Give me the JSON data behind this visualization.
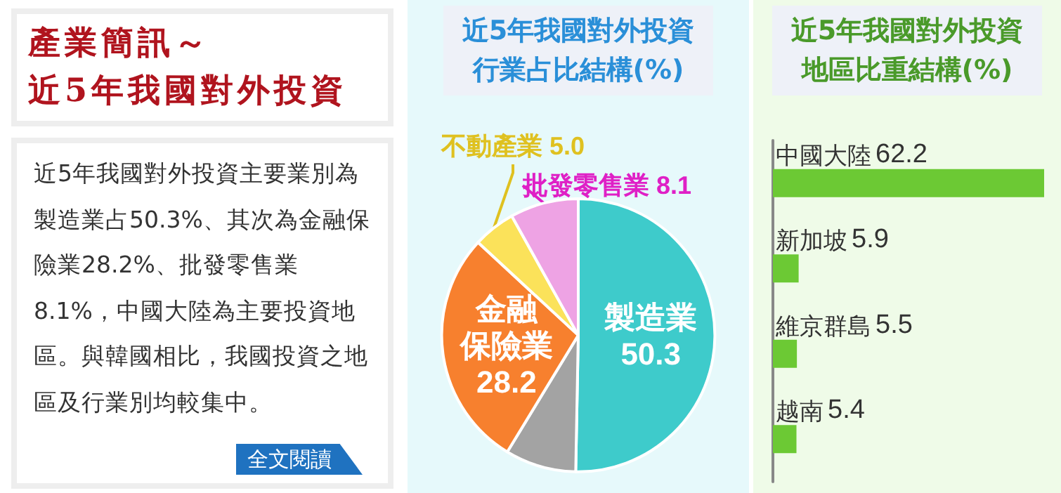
{
  "chart_data": [
    {
      "type": "other",
      "title": "產業簡訊～",
      "subtitle": "近5年我國對外投資",
      "annotations": [
        "近5年我國對外投資主要業別為製造業占50.3%、其次為金融保險業28.2%、批發零售業8.1%，中國大陸為主要投資地區。與韓國相比，我國投資之地區及行業別均較集中。",
        "全文閱讀"
      ]
    },
    {
      "type": "pie",
      "title": "近5年我國對外投資行業占比結構(%)",
      "categories": [
        "製造業",
        null,
        "金融保險業",
        "不動產業",
        "批發零售業"
      ],
      "values": [
        50.3,
        8.4,
        28.2,
        5.0,
        8.1
      ],
      "colors": [
        "#3ecbcb",
        "#a3a3a3",
        "#f7802e",
        "#fbe25a",
        "#eea3e4"
      ],
      "value_labels": [
        "50.3",
        null,
        "28.2",
        "5.0",
        "8.1"
      ],
      "legend": false
    },
    {
      "type": "bar",
      "orientation": "horizontal",
      "title": "近5年我國對外投資地區比重結構(%)",
      "categories": [
        "中國大陸",
        "新加坡",
        "維京群島",
        "越南"
      ],
      "values": [
        62.2,
        5.9,
        5.5,
        5.4
      ],
      "color": "#6cc934",
      "data_labels": true,
      "tick_labels": "y",
      "legend": false
    }
  ]
}
